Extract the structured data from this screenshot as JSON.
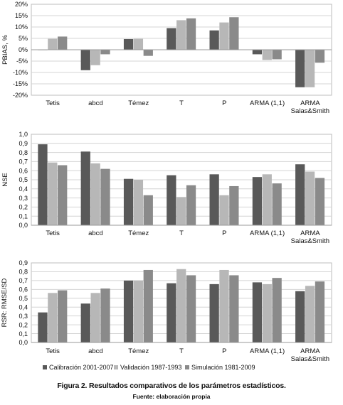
{
  "chart_data": [
    {
      "type": "bar",
      "ylabel": "PBIAS, %",
      "ylim": [
        -0.2,
        0.2
      ],
      "yticks": [
        "-20%",
        "-15%",
        "-10%",
        "-5%",
        "0%",
        "5%",
        "10%",
        "15%",
        "20%"
      ],
      "categories": [
        "Tetis",
        "abcd",
        "Témez",
        "T",
        "P",
        "ARMA (1,1)",
        "ARMA\nSalas&Smith"
      ],
      "grid": true,
      "series": [
        {
          "name": "Calibración 2001-2007",
          "values": [
            0.0,
            -0.09,
            0.047,
            0.095,
            0.085,
            -0.02,
            -0.165
          ]
        },
        {
          "name": "Validación 1987-1993",
          "values": [
            0.048,
            -0.068,
            0.048,
            0.13,
            0.12,
            -0.045,
            -0.165
          ]
        },
        {
          "name": "Simulación 1981-2009",
          "values": [
            0.058,
            -0.02,
            -0.027,
            0.138,
            0.143,
            -0.042,
            -0.057
          ]
        }
      ]
    },
    {
      "type": "bar",
      "ylabel": "NSE",
      "ylim": [
        0,
        1.0
      ],
      "yticks": [
        "0,0",
        "0,1",
        "0,2",
        "0,3",
        "0,4",
        "0,5",
        "0,6",
        "0,7",
        "0,8",
        "0,9",
        "1,0"
      ],
      "categories": [
        "Tetis",
        "abcd",
        "Témez",
        "T",
        "P",
        "ARMA (1,1)",
        "ARMA\nSalas&Smith"
      ],
      "grid": true,
      "series": [
        {
          "name": "Calibración 2001-2007",
          "values": [
            0.89,
            0.81,
            0.51,
            0.55,
            0.56,
            0.53,
            0.67
          ]
        },
        {
          "name": "Validación 1987-1993",
          "values": [
            0.69,
            0.68,
            0.5,
            0.31,
            0.33,
            0.56,
            0.59
          ]
        },
        {
          "name": "Simulación 1981-2009",
          "values": [
            0.66,
            0.62,
            0.33,
            0.44,
            0.43,
            0.46,
            0.52
          ]
        }
      ]
    },
    {
      "type": "bar",
      "ylabel": "RSR: RMSE/SD",
      "ylim": [
        0,
        0.9
      ],
      "yticks": [
        "0,0",
        "0,1",
        "0,2",
        "0,3",
        "0,4",
        "0,5",
        "0,6",
        "0,7",
        "0,8",
        "0,9"
      ],
      "categories": [
        "Tetis",
        "abcd",
        "Témez",
        "T",
        "P",
        "ARMA (1,1)",
        "ARMA\nSalas&Smith"
      ],
      "grid": true,
      "legend": "bottom",
      "series": [
        {
          "name": "Calibración 2001-2007",
          "values": [
            0.34,
            0.44,
            0.7,
            0.67,
            0.66,
            0.68,
            0.58
          ]
        },
        {
          "name": "Validación 1987-1993",
          "values": [
            0.56,
            0.56,
            0.7,
            0.83,
            0.82,
            0.66,
            0.64
          ]
        },
        {
          "name": "Simulación 1981-2009",
          "values": [
            0.59,
            0.61,
            0.82,
            0.76,
            0.76,
            0.73,
            0.69
          ]
        }
      ]
    }
  ],
  "legend": [
    {
      "label": "Calibración 2001-2007",
      "color": "#595959"
    },
    {
      "label": "Validación 1987-1993",
      "color": "#b7b7b7"
    },
    {
      "label": "Simulación 1981-2009",
      "color": "#8a8a8a"
    }
  ],
  "series_colors": [
    "#595959",
    "#b7b7b7",
    "#8a8a8a"
  ],
  "caption": {
    "title": "Figura 2. Resultados comparativos de los parámetros estadísticos.",
    "source": "Fuente: elaboración propia"
  }
}
